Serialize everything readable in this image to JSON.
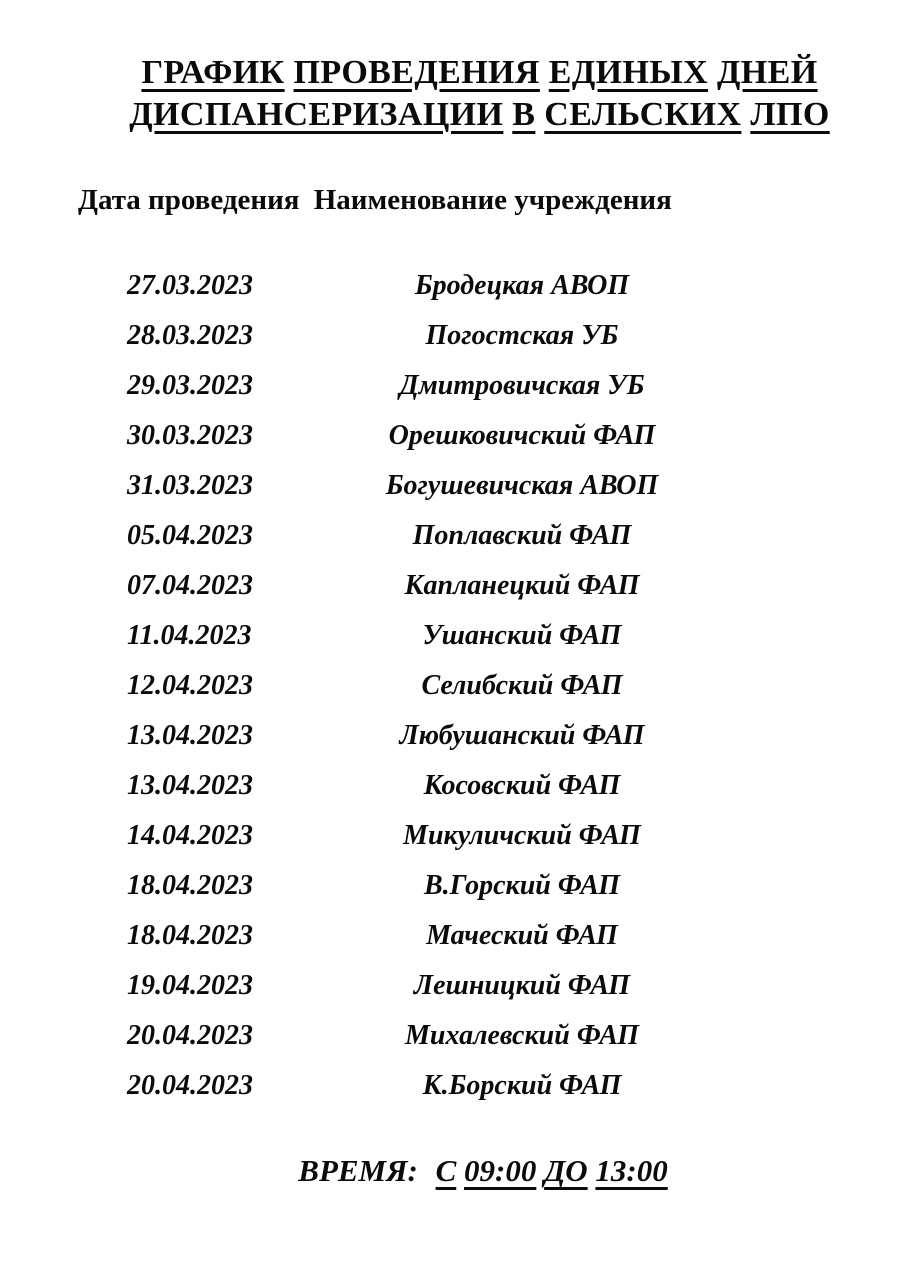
{
  "document": {
    "title_line1": "ГРАФИК ПРОВЕДЕНИЯ ЕДИНЫХ ДНЕЙ",
    "title_line2": "ДИСПАНСЕРИЗАЦИИ В СЕЛЬСКИХ ЛПО",
    "columns": {
      "date": "Дата проведения",
      "facility": "Наименование учреждения"
    },
    "rows": [
      {
        "date": "27.03.2023",
        "facility": "Бродецкая АВОП"
      },
      {
        "date": "28.03.2023",
        "facility": "Погостская УБ"
      },
      {
        "date": "29.03.2023",
        "facility": "Дмитровичская УБ"
      },
      {
        "date": "30.03.2023",
        "facility": "Орешковичский ФАП"
      },
      {
        "date": "31.03.2023",
        "facility": "Богушевичская АВОП"
      },
      {
        "date": "05.04.2023",
        "facility": "Поплавский ФАП"
      },
      {
        "date": "07.04.2023",
        "facility": "Капланецкий ФАП"
      },
      {
        "date": "11.04.2023",
        "facility": "Ушанский ФАП"
      },
      {
        "date": "12.04.2023",
        "facility": "Селибский ФАП"
      },
      {
        "date": "13.04.2023",
        "facility": "Любушанский ФАП"
      },
      {
        "date": "13.04.2023",
        "facility": "Косовский ФАП"
      },
      {
        "date": "14.04.2023",
        "facility": "Микуличский ФАП"
      },
      {
        "date": "18.04.2023",
        "facility": "В.Горский ФАП"
      },
      {
        "date": "18.04.2023",
        "facility": "Маческий ФАП"
      },
      {
        "date": "19.04.2023",
        "facility": "Лешницкий ФАП"
      },
      {
        "date": "20.04.2023",
        "facility": "Михалевский ФАП"
      },
      {
        "date": "20.04.2023",
        "facility": "К.Борский ФАП"
      }
    ],
    "time_label": "ВРЕМЯ:",
    "time_value": "С 09:00 ДО 13:00",
    "colors": {
      "text": "#0b0b0b",
      "background": "#ffffff"
    }
  }
}
